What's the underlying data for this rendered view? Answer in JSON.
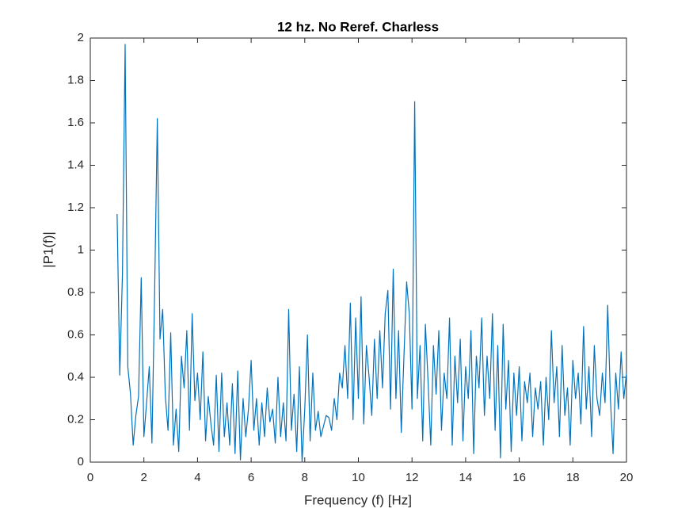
{
  "chart_data": {
    "type": "line",
    "title": "12 hz. No Reref. Charless",
    "xlabel": "Frequency (f) [Hz]",
    "ylabel": "|P1(f)|",
    "color": "#0072bd",
    "x": [
      1,
      1.1,
      1.2,
      1.3,
      1.4,
      1.5,
      1.6,
      1.7,
      1.8,
      1.9,
      2,
      2.1,
      2.2,
      2.3,
      2.4,
      2.5,
      2.6,
      2.7,
      2.8,
      2.9,
      3,
      3.1,
      3.2,
      3.3,
      3.4,
      3.5,
      3.6,
      3.7,
      3.8,
      3.9,
      4,
      4.1,
      4.2,
      4.3,
      4.4,
      4.5,
      4.6,
      4.7,
      4.8,
      4.9,
      5,
      5.1,
      5.2,
      5.3,
      5.4,
      5.5,
      5.6,
      5.7,
      5.8,
      5.9,
      6,
      6.1,
      6.2,
      6.3,
      6.4,
      6.5,
      6.6,
      6.7,
      6.8,
      6.9,
      7,
      7.1,
      7.2,
      7.3,
      7.4,
      7.5,
      7.6,
      7.7,
      7.8,
      7.9,
      8,
      8.1,
      8.2,
      8.3,
      8.4,
      8.5,
      8.6,
      8.7,
      8.8,
      8.9,
      9,
      9.1,
      9.2,
      9.3,
      9.4,
      9.5,
      9.6,
      9.7,
      9.8,
      9.9,
      10,
      10.1,
      10.2,
      10.3,
      10.4,
      10.5,
      10.6,
      10.7,
      10.8,
      10.9,
      11,
      11.1,
      11.2,
      11.3,
      11.4,
      11.5,
      11.6,
      11.7,
      11.8,
      11.9,
      12,
      12.1,
      12.2,
      12.3,
      12.4,
      12.5,
      12.6,
      12.7,
      12.8,
      12.9,
      13,
      13.1,
      13.2,
      13.3,
      13.4,
      13.5,
      13.6,
      13.7,
      13.8,
      13.9,
      14,
      14.1,
      14.2,
      14.3,
      14.4,
      14.5,
      14.6,
      14.7,
      14.8,
      14.9,
      15,
      15.1,
      15.2,
      15.3,
      15.4,
      15.5,
      15.6,
      15.7,
      15.8,
      15.9,
      16,
      16.1,
      16.2,
      16.3,
      16.4,
      16.5,
      16.6,
      16.7,
      16.8,
      16.9,
      17,
      17.1,
      17.2,
      17.3,
      17.4,
      17.5,
      17.6,
      17.7,
      17.8,
      17.9,
      18,
      18.1,
      18.2,
      18.3,
      18.4,
      18.5,
      18.6,
      18.7,
      18.8,
      18.9,
      19,
      19.1,
      19.2,
      19.3,
      19.4,
      19.5,
      19.6,
      19.7,
      19.8,
      19.9,
      20
    ],
    "values": [
      1.17,
      0.41,
      0.89,
      1.97,
      0.45,
      0.32,
      0.08,
      0.22,
      0.31,
      0.87,
      0.12,
      0.28,
      0.45,
      0.09,
      0.8,
      1.62,
      0.58,
      0.72,
      0.31,
      0.15,
      0.61,
      0.08,
      0.25,
      0.05,
      0.5,
      0.35,
      0.62,
      0.15,
      0.7,
      0.29,
      0.42,
      0.2,
      0.52,
      0.1,
      0.31,
      0.18,
      0.08,
      0.41,
      0.05,
      0.42,
      0.12,
      0.28,
      0.08,
      0.37,
      0.04,
      0.43,
      0.01,
      0.3,
      0.12,
      0.25,
      0.48,
      0.15,
      0.3,
      0.08,
      0.28,
      0.12,
      0.35,
      0.19,
      0.25,
      0.09,
      0.4,
      0.12,
      0.28,
      0.1,
      0.72,
      0.15,
      0.32,
      0.05,
      0.45,
      0,
      0.25,
      0.6,
      0.1,
      0.42,
      0.15,
      0.24,
      0.12,
      0.17,
      0.22,
      0.21,
      0.15,
      0.3,
      0.2,
      0.42,
      0.35,
      0.55,
      0.3,
      0.75,
      0.2,
      0.68,
      0.3,
      0.78,
      0.18,
      0.55,
      0.4,
      0.22,
      0.58,
      0.3,
      0.62,
      0.35,
      0.7,
      0.81,
      0.25,
      0.91,
      0.3,
      0.62,
      0.14,
      0.5,
      0.85,
      0.7,
      0.25,
      1.7,
      0.3,
      0.55,
      0.1,
      0.65,
      0.38,
      0.08,
      0.55,
      0.32,
      0.62,
      0.15,
      0.42,
      0.3,
      0.68,
      0.08,
      0.5,
      0.28,
      0.58,
      0.1,
      0.45,
      0.3,
      0.62,
      0.04,
      0.5,
      0.35,
      0.68,
      0.22,
      0.5,
      0.3,
      0.7,
      0.15,
      0.55,
      0.02,
      0.65,
      0.25,
      0.48,
      0.05,
      0.42,
      0.22,
      0.45,
      0.1,
      0.38,
      0.28,
      0.42,
      0.12,
      0.35,
      0.25,
      0.38,
      0.08,
      0.4,
      0.2,
      0.62,
      0.28,
      0.45,
      0.12,
      0.55,
      0.22,
      0.35,
      0.08,
      0.48,
      0.3,
      0.42,
      0.18,
      0.64,
      0.25,
      0.45,
      0.12,
      0.55,
      0.3,
      0.22,
      0.42,
      0.28,
      0.74,
      0.3,
      0.04,
      0.42,
      0.25,
      0.52,
      0.3,
      0.42
    ],
    "xlim": [
      0,
      20
    ],
    "xticks": [
      0,
      2,
      4,
      6,
      8,
      10,
      12,
      14,
      16,
      18,
      20
    ],
    "ylim": [
      0,
      2
    ],
    "yticks": [
      0,
      0.2,
      0.4,
      0.6,
      0.8,
      1,
      1.2,
      1.4,
      1.6,
      1.8,
      2
    ]
  }
}
